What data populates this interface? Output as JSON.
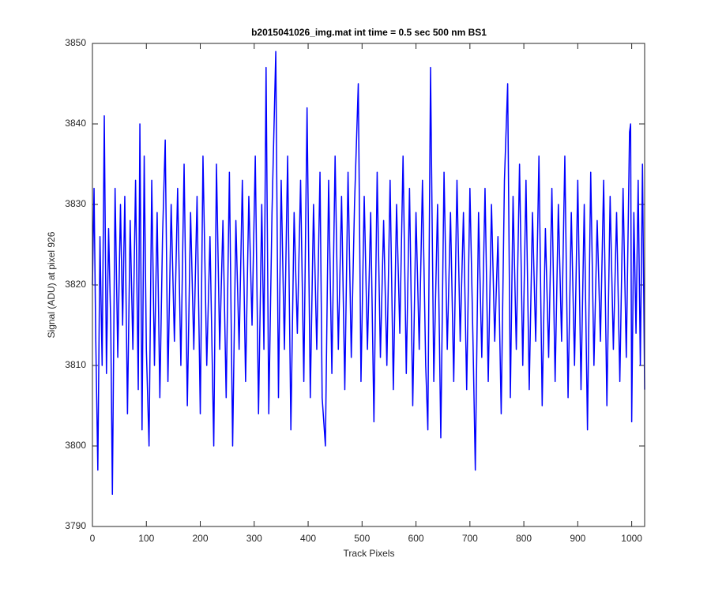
{
  "chart_data": {
    "type": "line",
    "title": "b2015041026_img.mat int time = 0.5 sec  500 nm BS1",
    "xlabel": "Track Pixels",
    "ylabel": "Signal (ADU) at pixel 926",
    "xlim": [
      0,
      1024
    ],
    "ylim": [
      3790,
      3850
    ],
    "xticks": [
      0,
      100,
      200,
      300,
      400,
      500,
      600,
      700,
      800,
      900,
      1000
    ],
    "yticks": [
      3790,
      3800,
      3810,
      3820,
      3830,
      3840,
      3850
    ],
    "grid": false,
    "series": [
      {
        "color": "#0000ff",
        "x": [
          0,
          3,
          6,
          10,
          14,
          18,
          22,
          26,
          30,
          34,
          37,
          42,
          47,
          52,
          56,
          60,
          65,
          70,
          75,
          80,
          85,
          88,
          92,
          96,
          100,
          105,
          110,
          115,
          120,
          125,
          130,
          135,
          140,
          146,
          152,
          158,
          164,
          170,
          176,
          182,
          188,
          194,
          200,
          205,
          212,
          218,
          225,
          230,
          236,
          242,
          248,
          254,
          260,
          266,
          272,
          278,
          284,
          290,
          296,
          302,
          308,
          314,
          318,
          322,
          327,
          333,
          340,
          345,
          350,
          356,
          362,
          368,
          374,
          380,
          386,
          392,
          398,
          404,
          410,
          416,
          422,
          426,
          432,
          438,
          444,
          450,
          456,
          462,
          468,
          474,
          480,
          486,
          493,
          498,
          504,
          510,
          516,
          522,
          528,
          534,
          540,
          546,
          552,
          558,
          564,
          570,
          576,
          582,
          588,
          594,
          600,
          606,
          612,
          618,
          622,
          627,
          633,
          640,
          646,
          652,
          658,
          664,
          670,
          676,
          682,
          688,
          694,
          700,
          706,
          710,
          716,
          722,
          728,
          734,
          740,
          746,
          752,
          758,
          764,
          770,
          775,
          780,
          786,
          792,
          798,
          804,
          810,
          816,
          822,
          828,
          834,
          840,
          846,
          852,
          858,
          864,
          870,
          876,
          882,
          888,
          894,
          900,
          906,
          912,
          918,
          924,
          930,
          936,
          942,
          948,
          954,
          960,
          966,
          972,
          978,
          984,
          990,
          996,
          998,
          1000,
          1004,
          1008,
          1012,
          1016,
          1020,
          1024
        ],
        "values": [
          3820,
          3832,
          3814,
          3797,
          3826,
          3810,
          3841,
          3809,
          3827,
          3815,
          3794,
          3832,
          3811,
          3830,
          3815,
          3831,
          3804,
          3828,
          3812,
          3833,
          3807,
          3840,
          3802,
          3836,
          3812,
          3800,
          3833,
          3810,
          3829,
          3806,
          3826,
          3838,
          3808,
          3830,
          3813,
          3832,
          3810,
          3835,
          3805,
          3829,
          3812,
          3831,
          3804,
          3836,
          3810,
          3826,
          3800,
          3835,
          3812,
          3828,
          3806,
          3834,
          3800,
          3828,
          3812,
          3833,
          3808,
          3831,
          3815,
          3836,
          3804,
          3830,
          3812,
          3847,
          3804,
          3829,
          3849,
          3806,
          3833,
          3812,
          3836,
          3802,
          3829,
          3814,
          3833,
          3808,
          3842,
          3806,
          3830,
          3812,
          3834,
          3806,
          3800,
          3833,
          3809,
          3836,
          3812,
          3831,
          3807,
          3834,
          3811,
          3830,
          3845,
          3808,
          3831,
          3812,
          3829,
          3803,
          3834,
          3811,
          3828,
          3810,
          3833,
          3807,
          3830,
          3814,
          3836,
          3809,
          3832,
          3805,
          3829,
          3812,
          3833,
          3810,
          3802,
          3847,
          3808,
          3830,
          3801,
          3834,
          3812,
          3829,
          3808,
          3833,
          3813,
          3829,
          3807,
          3832,
          3812,
          3797,
          3829,
          3811,
          3832,
          3808,
          3830,
          3813,
          3826,
          3804,
          3833,
          3845,
          3806,
          3831,
          3812,
          3835,
          3810,
          3833,
          3807,
          3829,
          3813,
          3836,
          3805,
          3827,
          3811,
          3832,
          3808,
          3830,
          3813,
          3836,
          3806,
          3829,
          3810,
          3833,
          3807,
          3830,
          3802,
          3834,
          3810,
          3828,
          3813,
          3833,
          3805,
          3831,
          3812,
          3829,
          3808,
          3832,
          3811,
          3839,
          3840,
          3803,
          3829,
          3814,
          3833,
          3810,
          3835,
          3807
        ]
      }
    ]
  }
}
